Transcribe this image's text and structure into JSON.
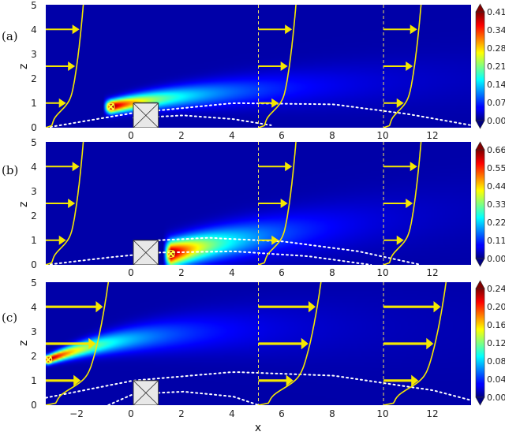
{
  "chart_data": [
    {
      "panel_label": "(a)",
      "type": "heatmap",
      "xlabel": "",
      "ylabel": "z",
      "xlim": [
        -3.5,
        13.5
      ],
      "ylim": [
        0,
        5
      ],
      "x_ticks": [
        "−2",
        "0",
        "2",
        "4",
        "6",
        "8",
        "10",
        "12"
      ],
      "x_tick_values": [
        -2,
        0,
        2,
        4,
        6,
        8,
        10,
        12
      ],
      "y_ticks": [
        "0",
        "1",
        "2",
        "3",
        "4",
        "5"
      ],
      "y_tick_values": [
        0,
        1,
        2,
        3,
        4,
        5
      ],
      "colorbar": {
        "min": 0.0,
        "max": 0.41,
        "ticks": [
          "0.00",
          "0.07",
          "0.14",
          "0.21",
          "0.28",
          "0.34",
          "0.41"
        ]
      },
      "source_position": [
        -0.9,
        0.85
      ],
      "plume": {
        "x0": -0.9,
        "z0": 0.85,
        "peak": 1.0,
        "rise": 0.45,
        "rise_scale": 3.0,
        "spread": 0.18,
        "spread_rate": 0.045,
        "decay": 7.0,
        "bulge": 0.05
      },
      "profile_stations_x": [
        -3.5,
        5.0,
        10.0
      ],
      "profile_scale": 1.5,
      "arrow_heights_z": [
        4,
        2.5,
        1
      ],
      "arrow_widths": 1,
      "dotted_boundaries": [
        {
          "x": [
            -3.5,
            0,
            4,
            8,
            11,
            13.5
          ],
          "z": [
            0.0,
            0.6,
            1.0,
            0.95,
            0.55,
            0.1
          ]
        },
        {
          "x": [
            0,
            2,
            4,
            5.5
          ],
          "z": [
            0.4,
            0.5,
            0.35,
            0.1
          ]
        }
      ],
      "obstacle": {
        "x": [
          0,
          1
        ],
        "z": [
          0,
          1
        ]
      }
    },
    {
      "panel_label": "(b)",
      "type": "heatmap",
      "xlabel": "",
      "ylabel": "z",
      "xlim": [
        -3.5,
        13.5
      ],
      "ylim": [
        0,
        5
      ],
      "x_ticks": [
        "−2",
        "0",
        "2",
        "4",
        "6",
        "8",
        "10",
        "12"
      ],
      "x_tick_values": [
        -2,
        0,
        2,
        4,
        6,
        8,
        10,
        12
      ],
      "y_ticks": [
        "0",
        "1",
        "2",
        "3",
        "4",
        "5"
      ],
      "y_tick_values": [
        0,
        1,
        2,
        3,
        4,
        5
      ],
      "colorbar": {
        "min": 0.0,
        "max": 0.66,
        "ticks": [
          "0.00",
          "0.11",
          "0.22",
          "0.33",
          "0.44",
          "0.55",
          "0.66"
        ]
      },
      "source_position": [
        1.5,
        0.45
      ],
      "plume": {
        "x0": 1.5,
        "z0": 0.45,
        "peak": 1.0,
        "rise": 0.35,
        "rise_scale": 2.5,
        "spread": 0.35,
        "spread_rate": 0.05,
        "decay": 5.0,
        "bulge": 0.12
      },
      "profile_stations_x": [
        -3.5,
        5.0,
        10.0
      ],
      "profile_scale": 1.5,
      "arrow_heights_z": [
        4,
        2.5,
        1
      ],
      "arrow_widths": 1,
      "dotted_boundaries": [
        {
          "x": [
            1,
            3,
            6,
            9,
            11.5
          ],
          "z": [
            1.0,
            1.1,
            0.95,
            0.55,
            0.0
          ]
        },
        {
          "x": [
            -3.5,
            -1,
            1,
            4,
            7,
            9.5
          ],
          "z": [
            0.0,
            0.3,
            0.5,
            0.55,
            0.35,
            0.0
          ]
        }
      ],
      "obstacle": {
        "x": [
          0,
          1
        ],
        "z": [
          0,
          1
        ]
      }
    },
    {
      "panel_label": "(c)",
      "type": "heatmap",
      "xlabel": "x",
      "ylabel": "z",
      "xlim": [
        -3.5,
        13.5
      ],
      "ylim": [
        0,
        5
      ],
      "x_ticks": [
        "−2",
        "0",
        "2",
        "4",
        "6",
        "8",
        "10",
        "12"
      ],
      "x_tick_values": [
        -2,
        0,
        2,
        4,
        6,
        8,
        10,
        12
      ],
      "y_ticks": [
        "0",
        "1",
        "2",
        "3",
        "4",
        "5"
      ],
      "y_tick_values": [
        0,
        1,
        2,
        3,
        4,
        5
      ],
      "colorbar": {
        "min": 0.0,
        "max": 0.24,
        "ticks": [
          "0.00",
          "0.04",
          "0.08",
          "0.12",
          "0.16",
          "0.20",
          "0.24"
        ]
      },
      "source_position": [
        -3.4,
        1.85
      ],
      "plume": {
        "x0": -3.4,
        "z0": 1.85,
        "peak": 1.0,
        "rise": 1.35,
        "rise_scale": 3.5,
        "spread": 0.12,
        "spread_rate": 0.07,
        "decay": 6.0,
        "bulge": 0.0
      },
      "profile_stations_x": [
        -3.5,
        5.0,
        10.0
      ],
      "profile_scale": 2.5,
      "arrow_heights_z": [
        4,
        2.5,
        1
      ],
      "arrow_widths": 1.6,
      "dotted_boundaries": [
        {
          "x": [
            -3.5,
            0,
            4,
            8,
            12,
            13.5
          ],
          "z": [
            0.3,
            1.0,
            1.35,
            1.2,
            0.6,
            0.2
          ]
        },
        {
          "x": [
            -1,
            0,
            2,
            4,
            5
          ],
          "z": [
            0.0,
            0.45,
            0.55,
            0.35,
            0.0
          ]
        }
      ],
      "obstacle": {
        "x": [
          0,
          1
        ],
        "z": [
          0,
          1
        ]
      }
    }
  ],
  "colors": {
    "profile": "#f5e800",
    "dotted": "#ffffff",
    "station_line": "#f0e060",
    "obstacle_fill": "#e8e8e8",
    "obstacle_edge": "#333333",
    "marker": "#ffff33"
  }
}
